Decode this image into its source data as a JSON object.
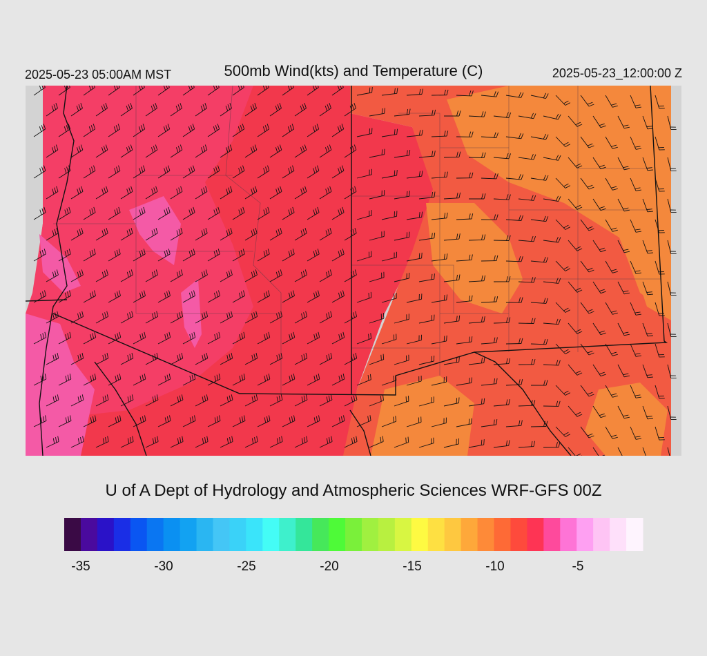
{
  "header": {
    "valid_time_local": "2025-05-23 05:00AM MST",
    "title": "500mb Wind(kts) and Temperature (C)",
    "valid_time_utc": "2025-05-23_12:00:00 Z"
  },
  "credit": "U of A Dept of Hydrology and Atmospheric Sciences WRF-GFS 00Z",
  "legend": {
    "colors": [
      "#3a0a45",
      "#4a0a9e",
      "#2a12c8",
      "#1a2ee6",
      "#0a56f2",
      "#0a76f2",
      "#0a90f2",
      "#12a2f2",
      "#2ab6f2",
      "#44c6f6",
      "#3ad2f8",
      "#3ae4fa",
      "#44fcf6",
      "#3ef0cc",
      "#34e69a",
      "#46e85a",
      "#4efa38",
      "#7af03a",
      "#a0f040",
      "#b8f040",
      "#d8f642",
      "#fefa42",
      "#fee042",
      "#fec840",
      "#fea83a",
      "#fe8a38",
      "#fe6a36",
      "#fe4a3c",
      "#fe3454",
      "#fe4a9c",
      "#fe74d6",
      "#fea0f2",
      "#fec4f4",
      "#fee0fa",
      "#fef4fe"
    ],
    "ticks": [
      "-35",
      "-30",
      "-25",
      "-20",
      "-15",
      "-10",
      "-5"
    ]
  },
  "map_colors": {
    "background": "#d3d3d3",
    "pink": "#f45aa6",
    "magenta_red": "#f43e66",
    "red": "#f2384c",
    "orange_red": "#f25a42",
    "orange": "#f4883c"
  }
}
